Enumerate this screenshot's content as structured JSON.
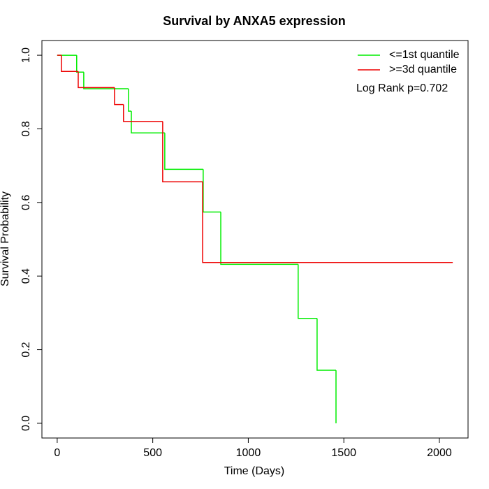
{
  "chart_data": {
    "type": "step",
    "title": "Survival by ANXA5 expression",
    "x_label": "Time (Days)",
    "y_label": "Survival Probability",
    "annotation": "Log Rank p=0.702",
    "xlim": [
      -80,
      2150
    ],
    "ylim": [
      -0.04,
      1.04
    ],
    "xticks": [
      0,
      500,
      1000,
      1500,
      2000
    ],
    "yticks": [
      {
        "value": 0,
        "label": "0.0"
      },
      {
        "value": 0.2,
        "label": "0.2"
      },
      {
        "value": 0.4,
        "label": "0.4"
      },
      {
        "value": 0.6,
        "label": "0.6"
      },
      {
        "value": 0.8,
        "label": "0.8"
      },
      {
        "value": 1,
        "label": "1.0"
      }
    ],
    "legend": "top-right",
    "series": [
      {
        "name": "<=1st quantile",
        "color": "#00ee00",
        "x": [
          0,
          102,
          139,
          373,
          388,
          563,
          764,
          856,
          1261,
          1360,
          1459
        ],
        "values": [
          1,
          0.954,
          0.909,
          0.848,
          0.789,
          0.69,
          0.574,
          0.432,
          0.285,
          0.144,
          0
        ]
      },
      {
        "name": ">=3d quantile",
        "color": "#ee0000",
        "x": [
          0,
          22,
          110,
          300,
          347,
          552,
          761,
          2070
        ],
        "values": [
          1,
          0.956,
          0.912,
          0.866,
          0.82,
          0.656,
          0.437,
          0.437
        ]
      }
    ]
  }
}
